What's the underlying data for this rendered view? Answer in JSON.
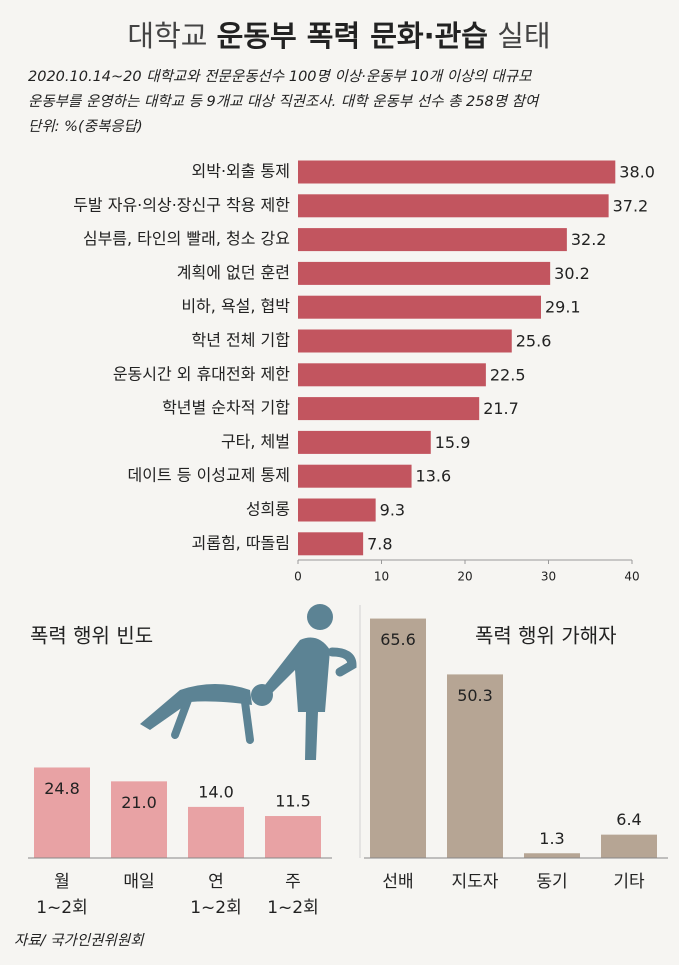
{
  "title": [
    "대학교",
    "운동부 폭력 문화·관습",
    "실태"
  ],
  "subtitle": [
    "2020.10.14~20 대학교와 전문운동선수 100명 이상·운동부 10개 이상의 대규모",
    "운동부를 운영하는 대학교 등 9개교 대상 직권조사. 대학 운동부 선수 총 258명 참여"
  ],
  "unit": "단위: %(중복응답)",
  "source": "자료/ 국가인권위원회",
  "chart_data": [
    {
      "type": "hbar",
      "color": "#c2555f",
      "categories": [
        "외박·외출 통제",
        "두발 자유·의상·장신구 착용 제한",
        "심부름, 타인의 빨래, 청소 강요",
        "계획에 없던 훈련",
        "비하, 욕설, 협박",
        "학년 전체 기합",
        "운동시간 외 휴대전화 제한",
        "학년별 순차적 기합",
        "구타, 체벌",
        "데이트 등 이성교제 통제",
        "성희롱",
        "괴롭힘, 따돌림"
      ],
      "values": [
        38.0,
        37.2,
        32.2,
        30.2,
        29.1,
        25.6,
        22.5,
        21.7,
        15.9,
        13.6,
        9.3,
        7.8
      ],
      "value_labels": [
        "38.0",
        "37.2",
        "32.2",
        "30.2",
        "29.1",
        "25.6",
        "22.5",
        "21.7",
        "15.9",
        "13.6",
        "9.3",
        "7.8"
      ],
      "xlim": [
        0,
        40
      ],
      "xticks": [
        0,
        10,
        20,
        30,
        40
      ]
    },
    {
      "type": "bar",
      "title": "폭력 행위 빈도",
      "color": "#e8a2a4",
      "title_color": "#b3434d",
      "categories": [
        [
          "월",
          "1~2회"
        ],
        [
          "매일"
        ],
        [
          "연",
          "1~2회"
        ],
        [
          "주",
          "1~2회"
        ]
      ],
      "values": [
        24.8,
        21.0,
        14.0,
        11.5
      ],
      "value_labels": [
        "24.8",
        "21.0",
        "14.0",
        "11.5"
      ]
    },
    {
      "type": "bar",
      "title": "폭력 행위 가해자",
      "color": "#b6a594",
      "title_color": "#8d7d6c",
      "categories": [
        [
          "선배"
        ],
        [
          "지도자"
        ],
        [
          "동기"
        ],
        [
          "기타"
        ]
      ],
      "values": [
        65.6,
        50.3,
        1.3,
        6.4
      ],
      "value_labels": [
        "65.6",
        "50.3",
        "1.3",
        "6.4"
      ]
    }
  ]
}
